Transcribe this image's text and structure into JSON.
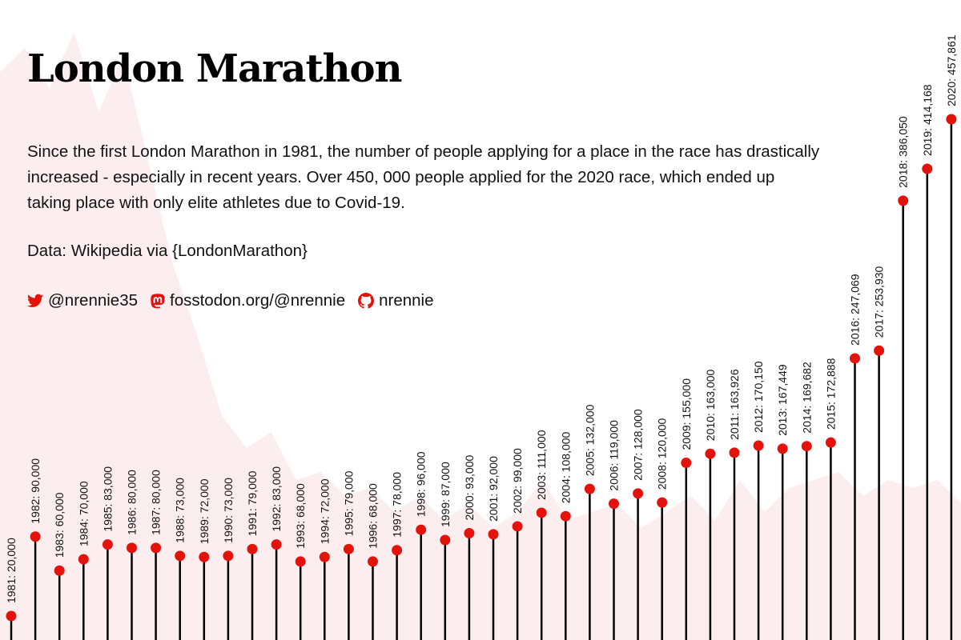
{
  "title": "London Marathon",
  "description": "Since the first London Marathon in 1981, the number of people applying for a place in the race has drastically increased - especially in recent years. Over 450, 000 people applied for the 2020 race, which ended up taking place with only elite athletes due to Covid-19.",
  "source": "Data: Wikipedia via {LondonMarathon}",
  "socials": [
    {
      "icon": "twitter-icon",
      "label": "@nrennie35"
    },
    {
      "icon": "mastodon-icon",
      "label": "fosstodon.org/@nrennie"
    },
    {
      "icon": "github-icon",
      "label": "nrennie"
    }
  ],
  "colors": {
    "accent": "#e3120b",
    "stem": "#000000",
    "background_area": "#fbeaea",
    "text": "#111111"
  },
  "chart_data": {
    "type": "lollipop",
    "categories": [
      "1981",
      "1982",
      "1983",
      "1984",
      "1985",
      "1986",
      "1987",
      "1988",
      "1989",
      "1990",
      "1991",
      "1992",
      "1993",
      "1994",
      "1995",
      "1996",
      "1997",
      "1998",
      "1999",
      "2000",
      "2001",
      "2002",
      "2003",
      "2004",
      "2005",
      "2006",
      "2007",
      "2008",
      "2009",
      "2010",
      "2011",
      "2012",
      "2013",
      "2014",
      "2015",
      "2016",
      "2017",
      "2018",
      "2019",
      "2020"
    ],
    "values": [
      20000,
      90000,
      60000,
      70000,
      83000,
      80000,
      80000,
      73000,
      72000,
      73000,
      79000,
      83000,
      68000,
      72000,
      79000,
      68000,
      78000,
      96000,
      87000,
      93000,
      92000,
      99000,
      111000,
      108000,
      132000,
      119000,
      128000,
      120000,
      155000,
      163000,
      163926,
      170150,
      167449,
      169682,
      172888,
      247069,
      253930,
      386050,
      414168,
      457861
    ],
    "point_labels": [
      "1981: 20,000",
      "1982: 90,000",
      "1983: 60,000",
      "1984: 70,000",
      "1985: 83,000",
      "1986: 80,000",
      "1987: 80,000",
      "1988: 73,000",
      "1989: 72,000",
      "1990: 73,000",
      "1991: 79,000",
      "1992: 83,000",
      "1993: 68,000",
      "1994: 72,000",
      "1995: 79,000",
      "1996: 68,000",
      "1997: 78,000",
      "1998: 96,000",
      "1999: 87,000",
      "2000: 93,000",
      "2001: 92,000",
      "2002: 99,000",
      "2003: 111,000",
      "2004: 108,000",
      "2005: 132,000",
      "2006: 119,000",
      "2007: 128,000",
      "2008: 120,000",
      "2009: 155,000",
      "2010: 163,000",
      "2011: 163,926",
      "2012: 170,150",
      "2013: 167,449",
      "2014: 169,682",
      "2015: 172,888",
      "2016: 247,069",
      "2017: 253,930",
      "2018: 386,050",
      "2019: 414,168",
      "2020: 457,861"
    ],
    "grid": false,
    "legend": "none"
  }
}
